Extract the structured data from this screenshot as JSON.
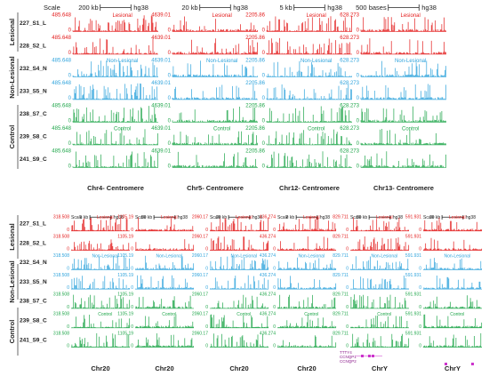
{
  "panels": [
    {
      "scale_label": "Scale",
      "genome": "hg38",
      "groups": [
        "Lesional",
        "Non-Lesional",
        "Control"
      ],
      "samples": [
        {
          "name": "227_S1_L",
          "group": "Lesional"
        },
        {
          "name": "228_S2_L",
          "group": "Lesional"
        },
        {
          "name": "232_S4_N",
          "group": "Non-Lesional"
        },
        {
          "name": "233_S5_N",
          "group": "Non-Lesional"
        },
        {
          "name": "238_S7_C",
          "group": "Control"
        },
        {
          "name": "239_S8_C",
          "group": "Control"
        },
        {
          "name": "241_S9_C",
          "group": "Control"
        }
      ],
      "tracks": [
        {
          "scale": "200 kb",
          "ymax": "485.648",
          "ymin": "0",
          "region": "Chr4- Centromere"
        },
        {
          "scale": "20 kb",
          "ymax": "4639.01",
          "ymin": "0",
          "region": "Chr5- Centromere"
        },
        {
          "scale": "5 kb",
          "ymax": "2205.86",
          "ymin": "0",
          "region": "Chr12- Centromere"
        },
        {
          "scale": "500 bases",
          "ymax": "628.273",
          "ymin": "0",
          "region": "Chr13- Centromere"
        }
      ]
    },
    {
      "scale_label": "Scale",
      "genome": "hg38",
      "groups": [
        "Lesional",
        "Non-Lesional",
        "Control"
      ],
      "samples": [
        {
          "name": "227_S1_L",
          "group": "Lesional"
        },
        {
          "name": "228_S2_L",
          "group": "Lesional"
        },
        {
          "name": "232_S4_N",
          "group": "Non-Lesional"
        },
        {
          "name": "233_S5_N",
          "group": "Non-Lesional"
        },
        {
          "name": "238_S7_C",
          "group": "Control"
        },
        {
          "name": "239_S8_C",
          "group": "Control"
        },
        {
          "name": "241_S9_C",
          "group": "Control"
        }
      ],
      "tracks": [
        {
          "scale": "1 kb",
          "ymax": "318.508",
          "ymin": "0",
          "region": "Chr20"
        },
        {
          "scale": "50 kb",
          "ymax": "1105.19",
          "ymin": "0",
          "region": "Chr20"
        },
        {
          "scale": "20 kb",
          "ymax": "2060.17",
          "ymin": "0",
          "region": "Chr20"
        },
        {
          "scale": "2 kb",
          "ymax": "436.274",
          "ymin": "0",
          "region": "Chr20"
        },
        {
          "scale": "50 kb",
          "ymax": "829.711",
          "ymin": "0",
          "region": "ChrY"
        },
        {
          "scale": "10 kb",
          "ymax": "591.931",
          "ymin": "0",
          "region": "ChrY"
        }
      ],
      "genes": [
        "TTTY4",
        "CCNQP1",
        "CCNQP2"
      ]
    }
  ],
  "colors": {
    "Lesional": "#e31b1b",
    "Non-Lesional": "#2ea3dc",
    "Control": "#1fa64a"
  }
}
